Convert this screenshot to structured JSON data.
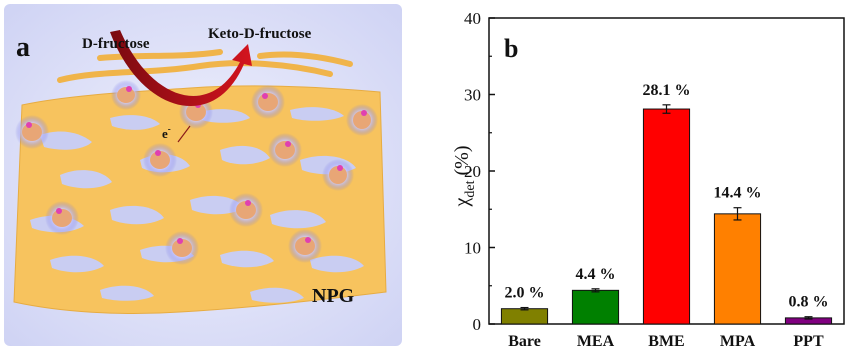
{
  "panel_a": {
    "label": "a",
    "reactant": "D-fructose",
    "product": "Keto-D-fructose",
    "electron": "e",
    "electron_sup": "-",
    "material": "NPG",
    "colors": {
      "frame": "#d9dcf6",
      "gold": "#f7c35e",
      "arrow": "#b0111b",
      "enzyme_glow": "#7e7ee8"
    }
  },
  "chart_data": {
    "type": "bar",
    "panel_label": "b",
    "categories": [
      "Bare",
      "MEA",
      "BME",
      "MPA",
      "PPT"
    ],
    "values": [
      2.0,
      4.4,
      28.1,
      14.4,
      0.8
    ],
    "errors": [
      0.15,
      0.2,
      0.55,
      0.8,
      0.15
    ],
    "data_labels": [
      "2.0 %",
      "4.4 %",
      "28.1 %",
      "14.4 %",
      "0.8 %"
    ],
    "colors": [
      "#808000",
      "#008000",
      "#ff0000",
      "#ff8000",
      "#800080"
    ],
    "ylabel": "χ",
    "ylabel_sub": "det",
    "ylabel_suffix": " (%)",
    "ylim": [
      0,
      40
    ],
    "yticks": [
      "0",
      "10",
      "20",
      "30",
      "40"
    ],
    "grid": false,
    "legend": "none"
  }
}
